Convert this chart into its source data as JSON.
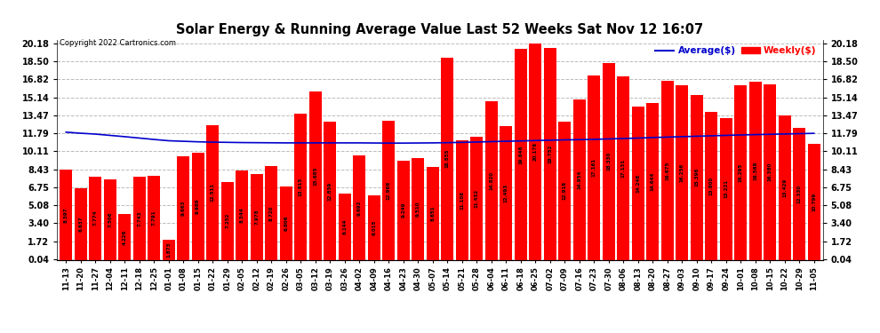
{
  "title": "Solar Energy & Running Average Value Last 52 Weeks Sat Nov 12 16:07",
  "copyright": "Copyright 2022 Cartronics.com",
  "bar_color": "#ff0000",
  "line_color": "#0000cc",
  "background_color": "#ffffff",
  "grid_color": "#bbbbbb",
  "categories": [
    "11-13",
    "11-20",
    "11-27",
    "12-04",
    "12-11",
    "12-18",
    "12-25",
    "01-01",
    "01-08",
    "01-15",
    "01-22",
    "01-29",
    "02-05",
    "02-12",
    "02-19",
    "02-26",
    "03-05",
    "03-12",
    "03-19",
    "03-26",
    "04-02",
    "04-09",
    "04-16",
    "04-23",
    "04-30",
    "05-07",
    "05-14",
    "05-21",
    "05-28",
    "06-04",
    "06-11",
    "06-18",
    "06-25",
    "07-02",
    "07-09",
    "07-16",
    "07-23",
    "07-30",
    "08-06",
    "08-13",
    "08-20",
    "08-27",
    "09-03",
    "09-10",
    "09-17",
    "09-24",
    "10-01",
    "10-08",
    "10-15",
    "10-22",
    "10-29",
    "11-05"
  ],
  "weekly_values": [
    8.397,
    6.637,
    7.774,
    7.506,
    4.226,
    7.743,
    7.791,
    1.873,
    9.663,
    9.989,
    12.511,
    7.252,
    8.344,
    7.978,
    8.72,
    6.806,
    13.615,
    15.685,
    12.859,
    6.144,
    9.692,
    6.015,
    12.968,
    9.249,
    9.51,
    8.651,
    18.855,
    11.108,
    11.432,
    14.82,
    12.493,
    19.646,
    20.178,
    19.752,
    12.918,
    14.954,
    17.161,
    18.33,
    17.131,
    14.248,
    14.644,
    16.675,
    16.256,
    15.396,
    13.8,
    13.221,
    16.295,
    16.588,
    16.38,
    13.429,
    12.33,
    10.799
  ],
  "average_values": [
    11.9,
    11.8,
    11.72,
    11.6,
    11.48,
    11.35,
    11.22,
    11.1,
    11.05,
    11.0,
    10.97,
    10.95,
    10.93,
    10.92,
    10.91,
    10.9,
    10.9,
    10.9,
    10.9,
    10.9,
    10.9,
    10.89,
    10.88,
    10.88,
    10.89,
    10.9,
    10.92,
    10.95,
    10.98,
    11.02,
    11.05,
    11.08,
    11.12,
    11.15,
    11.18,
    11.2,
    11.23,
    11.27,
    11.31,
    11.35,
    11.4,
    11.44,
    11.48,
    11.52,
    11.56,
    11.6,
    11.64,
    11.67,
    11.7,
    11.73,
    11.76,
    11.79
  ],
  "ytick_labels": [
    "0.04",
    "1.72",
    "3.40",
    "5.08",
    "6.75",
    "8.43",
    "10.11",
    "11.79",
    "13.47",
    "15.14",
    "16.82",
    "18.50",
    "20.18"
  ],
  "ytick_values": [
    0.04,
    1.72,
    3.4,
    5.08,
    6.75,
    8.43,
    10.11,
    11.79,
    13.47,
    15.14,
    16.82,
    18.5,
    20.18
  ],
  "ymax": 20.5,
  "ymin": 0.0,
  "legend_avg_label": "Average($)",
  "legend_weekly_label": "Weekly($)",
  "legend_avg_color": "#0000cc",
  "legend_weekly_color": "#ff0000"
}
